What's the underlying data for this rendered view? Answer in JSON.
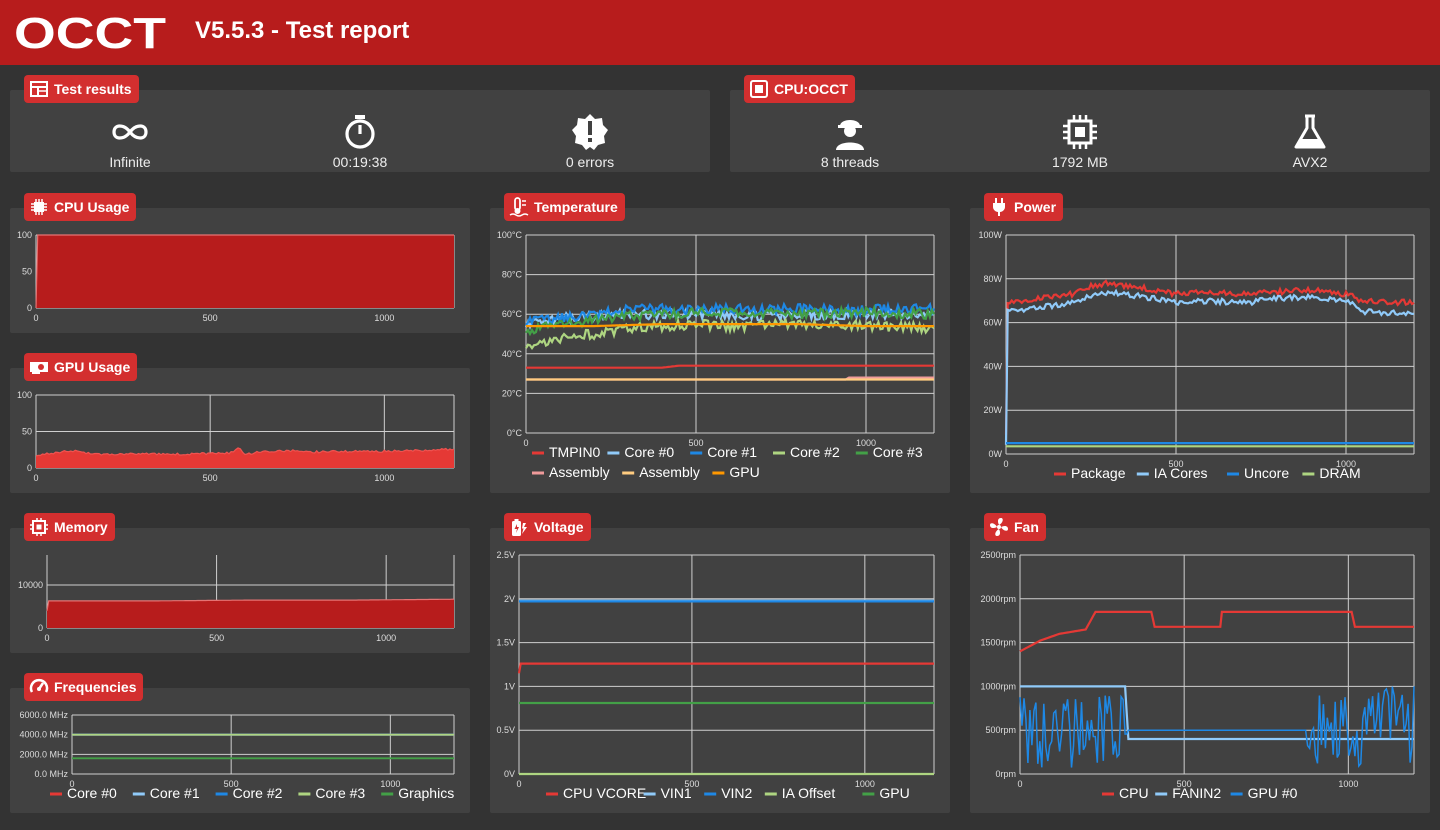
{
  "header": {
    "logo_text": "OCCT",
    "title": "V5.5.3 - Test report"
  },
  "test_results": {
    "title": "Test results",
    "duration_mode": "Infinite",
    "elapsed": "00:19:38",
    "errors": "0 errors"
  },
  "cpu_test": {
    "title": "CPU:OCCT",
    "threads": "8 threads",
    "memory": "1792 MB",
    "instruction_set": "AVX2"
  },
  "colors": {
    "accent": "#d32f2f",
    "header": "#b71c1c",
    "panel": "#414141",
    "background": "#333333"
  },
  "charts": {
    "cpu_usage": {
      "title": "CPU Usage",
      "icon": "cpu-chip-icon"
    },
    "gpu_usage": {
      "title": "GPU Usage",
      "icon": "graphics-card-icon"
    },
    "memory": {
      "title": "Memory",
      "icon": "memory-chip-icon"
    },
    "frequencies": {
      "title": "Frequencies",
      "icon": "speedometer-icon"
    },
    "temperature": {
      "title": "Temperature",
      "icon": "thermometer-icon"
    },
    "voltage": {
      "title": "Voltage",
      "icon": "battery-charging-icon"
    },
    "power": {
      "title": "Power",
      "icon": "power-plug-icon"
    },
    "fan": {
      "title": "Fan",
      "icon": "fan-icon"
    }
  },
  "chart_data": [
    {
      "id": "cpu_usage",
      "type": "area",
      "title": "CPU Usage",
      "xlim": [
        0,
        1200
      ],
      "xticks": [
        "0",
        "500",
        "1000"
      ],
      "ylim": [
        0,
        100
      ],
      "yticks": [
        "0",
        "50",
        "100"
      ],
      "series": [
        {
          "color": "#b71c1c",
          "fill": true,
          "points": [
            [
              0,
              0
            ],
            [
              5,
              100
            ],
            [
              1200,
              100
            ]
          ]
        }
      ]
    },
    {
      "id": "gpu_usage",
      "type": "area",
      "title": "GPU Usage",
      "xlim": [
        0,
        1200
      ],
      "xticks": [
        "0",
        "500",
        "1000"
      ],
      "ylim": [
        0,
        100
      ],
      "yticks": [
        "0",
        "50",
        "100"
      ],
      "series": [
        {
          "color": "#e53935",
          "fill": true,
          "points": [
            [
              0,
              18
            ],
            [
              50,
              20
            ],
            [
              100,
              24
            ],
            [
              150,
              20
            ],
            [
              200,
              19
            ],
            [
              300,
              20
            ],
            [
              400,
              19
            ],
            [
              500,
              20
            ],
            [
              560,
              21
            ],
            [
              580,
              28
            ],
            [
              600,
              18
            ],
            [
              640,
              22
            ],
            [
              700,
              23
            ],
            [
              750,
              24
            ],
            [
              800,
              22
            ],
            [
              900,
              23
            ],
            [
              1000,
              23
            ],
            [
              1100,
              24
            ],
            [
              1200,
              26
            ]
          ]
        }
      ]
    },
    {
      "id": "memory",
      "type": "area",
      "title": "Memory",
      "xlim": [
        0,
        1200
      ],
      "xticks": [
        "0",
        "500",
        "1000"
      ],
      "ylim": [
        0,
        17000
      ],
      "yticks": [
        "0",
        "10000"
      ],
      "series": [
        {
          "color": "#b71c1c",
          "fill": true,
          "points": [
            [
              0,
              4000
            ],
            [
              5,
              6300
            ],
            [
              300,
              6300
            ],
            [
              600,
              6500
            ],
            [
              900,
              6500
            ],
            [
              1200,
              6700
            ]
          ]
        }
      ]
    },
    {
      "id": "frequencies",
      "type": "line",
      "title": "Frequencies",
      "xlim": [
        0,
        1200
      ],
      "xticks": [
        "0",
        "500",
        "1000"
      ],
      "ylim": [
        0,
        6000
      ],
      "yticks": [
        "0.0 MHz",
        "2000.0 MHz",
        "4000.0 MHz",
        "6000.0 MHz"
      ],
      "legend": [
        "Core #0",
        "Core #1",
        "Core #2",
        "Core #3",
        "Graphics"
      ],
      "series": [
        {
          "name": "Core #0",
          "color": "#e53935",
          "points": [
            [
              0,
              4000
            ],
            [
              1200,
              4000
            ]
          ]
        },
        {
          "name": "Core #1",
          "color": "#90caf9",
          "points": [
            [
              0,
              4000
            ],
            [
              1200,
              4000
            ]
          ]
        },
        {
          "name": "Core #2",
          "color": "#1e88e5",
          "points": [
            [
              0,
              4000
            ],
            [
              1200,
              4000
            ]
          ]
        },
        {
          "name": "Core #3",
          "color": "#aed581",
          "points": [
            [
              0,
              4000
            ],
            [
              1200,
              4000
            ]
          ]
        },
        {
          "name": "Graphics",
          "color": "#43a047",
          "points": [
            [
              0,
              1600
            ],
            [
              1200,
              1600
            ]
          ]
        }
      ]
    },
    {
      "id": "temperature",
      "type": "line",
      "title": "Temperature",
      "xlim": [
        0,
        1200
      ],
      "xticks": [
        "0",
        "500",
        "1000"
      ],
      "ylim": [
        0,
        100
      ],
      "yticks": [
        "0°C",
        "20°C",
        "40°C",
        "60°C",
        "80°C",
        "100°C"
      ],
      "legend": [
        "TMPIN0",
        "Core #0",
        "Core #1",
        "Core #2",
        "Core #3",
        "Assembly",
        "Assembly",
        "GPU"
      ],
      "series": [
        {
          "name": "TMPIN0",
          "color": "#e53935",
          "points": [
            [
              0,
              33
            ],
            [
              400,
              33
            ],
            [
              450,
              34
            ],
            [
              1200,
              34
            ]
          ]
        },
        {
          "name": "Core #0",
          "color": "#90caf9",
          "points": [
            [
              0,
              55
            ],
            [
              100,
              58
            ],
            [
              300,
              60
            ],
            [
              500,
              60
            ],
            [
              700,
              59
            ],
            [
              900,
              60
            ],
            [
              1200,
              60
            ]
          ]
        },
        {
          "name": "Core #1",
          "color": "#1e88e5",
          "points": [
            [
              0,
              57
            ],
            [
              100,
              58
            ],
            [
              200,
              60
            ],
            [
              300,
              62
            ],
            [
              400,
              63
            ],
            [
              500,
              62
            ],
            [
              600,
              63
            ],
            [
              700,
              62
            ],
            [
              800,
              63
            ],
            [
              900,
              62
            ],
            [
              1000,
              62
            ],
            [
              1100,
              63
            ],
            [
              1200,
              63
            ]
          ]
        },
        {
          "name": "Core #2",
          "color": "#aed581",
          "points": [
            [
              0,
              44
            ],
            [
              100,
              48
            ],
            [
              200,
              50
            ],
            [
              300,
              53
            ],
            [
              400,
              54
            ],
            [
              500,
              55
            ],
            [
              600,
              54
            ],
            [
              800,
              55
            ],
            [
              1000,
              54
            ],
            [
              1200,
              53
            ]
          ]
        },
        {
          "name": "Core #3",
          "color": "#43a047",
          "points": [
            [
              0,
              52
            ],
            [
              100,
              55
            ],
            [
              200,
              57
            ],
            [
              300,
              59
            ],
            [
              400,
              60
            ],
            [
              500,
              61
            ],
            [
              600,
              61
            ],
            [
              800,
              60
            ],
            [
              1000,
              61
            ],
            [
              1200,
              60
            ]
          ]
        },
        {
          "name": "Assembly",
          "color": "#ef9a9a",
          "points": [
            [
              0,
              27
            ],
            [
              940,
              27
            ],
            [
              950,
              28
            ],
            [
              1200,
              28
            ]
          ]
        },
        {
          "name": "Assembly",
          "color": "#ffcc80",
          "points": [
            [
              0,
              27
            ],
            [
              1200,
              27
            ]
          ]
        },
        {
          "name": "GPU",
          "color": "#ff9800",
          "points": [
            [
              0,
              54
            ],
            [
              200,
              54
            ],
            [
              400,
              55
            ],
            [
              600,
              55
            ],
            [
              800,
              55
            ],
            [
              1000,
              54
            ],
            [
              1200,
              54
            ]
          ]
        }
      ]
    },
    {
      "id": "voltage",
      "type": "line",
      "title": "Voltage",
      "xlim": [
        0,
        1200
      ],
      "xticks": [
        "0",
        "500",
        "1000"
      ],
      "ylim": [
        0,
        2.5
      ],
      "yticks": [
        "0V",
        "0.5V",
        "1V",
        "1.5V",
        "2V",
        "2.5V"
      ],
      "legend": [
        "CPU VCORE",
        "VIN1",
        "VIN2",
        "IA Offset",
        "GPU"
      ],
      "series": [
        {
          "name": "CPU VCORE",
          "color": "#e53935",
          "points": [
            [
              0,
              1.15
            ],
            [
              5,
              1.26
            ],
            [
              1200,
              1.26
            ]
          ]
        },
        {
          "name": "VIN1",
          "color": "#90caf9",
          "points": [
            [
              0,
              1.98
            ],
            [
              1200,
              1.98
            ]
          ]
        },
        {
          "name": "VIN2",
          "color": "#1e88e5",
          "points": [
            [
              0,
              1.97
            ],
            [
              1200,
              1.97
            ]
          ]
        },
        {
          "name": "IA Offset",
          "color": "#aed581",
          "points": [
            [
              0,
              0
            ],
            [
              1200,
              0
            ]
          ]
        },
        {
          "name": "GPU",
          "color": "#43a047",
          "points": [
            [
              0,
              0.81
            ],
            [
              1200,
              0.81
            ]
          ]
        }
      ]
    },
    {
      "id": "power",
      "type": "line",
      "title": "Power",
      "xlim": [
        0,
        1200
      ],
      "xticks": [
        "0",
        "500",
        "1000"
      ],
      "ylim": [
        0,
        100
      ],
      "yticks": [
        "0W",
        "20W",
        "40W",
        "60W",
        "80W",
        "100W"
      ],
      "legend": [
        "Package",
        "IA Cores",
        "Uncore",
        "DRAM"
      ],
      "series": [
        {
          "name": "Package",
          "color": "#e53935",
          "points": [
            [
              0,
              10
            ],
            [
              5,
              69
            ],
            [
              100,
              71
            ],
            [
              200,
              73
            ],
            [
              250,
              77
            ],
            [
              300,
              78
            ],
            [
              400,
              76
            ],
            [
              500,
              73
            ],
            [
              600,
              74
            ],
            [
              700,
              73
            ],
            [
              800,
              74
            ],
            [
              900,
              75
            ],
            [
              1000,
              73
            ],
            [
              1050,
              70
            ],
            [
              1200,
              69
            ]
          ]
        },
        {
          "name": "IA Cores",
          "color": "#90caf9",
          "points": [
            [
              0,
              5
            ],
            [
              5,
              65
            ],
            [
              100,
              67
            ],
            [
              200,
              69
            ],
            [
              250,
              72
            ],
            [
              300,
              74
            ],
            [
              400,
              72
            ],
            [
              500,
              69
            ],
            [
              600,
              70
            ],
            [
              700,
              69
            ],
            [
              800,
              71
            ],
            [
              900,
              72
            ],
            [
              1000,
              70
            ],
            [
              1050,
              65
            ],
            [
              1200,
              64
            ]
          ]
        },
        {
          "name": "Uncore",
          "color": "#1e88e5",
          "points": [
            [
              0,
              5
            ],
            [
              1200,
              5
            ]
          ]
        },
        {
          "name": "DRAM",
          "color": "#aed581",
          "points": [
            [
              0,
              3.5
            ],
            [
              1200,
              3.5
            ]
          ]
        }
      ]
    },
    {
      "id": "fan",
      "type": "line",
      "title": "Fan",
      "xlim": [
        0,
        1200
      ],
      "xticks": [
        "0",
        "500",
        "1000"
      ],
      "ylim": [
        0,
        2500
      ],
      "yticks": [
        "0rpm",
        "500rpm",
        "1000rpm",
        "1500rpm",
        "2000rpm",
        "2500rpm"
      ],
      "legend": [
        "CPU",
        "FANIN2",
        "GPU #0"
      ],
      "series": [
        {
          "name": "CPU",
          "color": "#e53935",
          "points": [
            [
              0,
              1400
            ],
            [
              60,
              1520
            ],
            [
              120,
              1600
            ],
            [
              200,
              1650
            ],
            [
              230,
              1850
            ],
            [
              400,
              1850
            ],
            [
              410,
              1680
            ],
            [
              500,
              1680
            ],
            [
              610,
              1680
            ],
            [
              615,
              1850
            ],
            [
              1010,
              1850
            ],
            [
              1020,
              1680
            ],
            [
              1200,
              1680
            ]
          ]
        },
        {
          "name": "FANIN2",
          "color": "#90caf9",
          "points": [
            [
              0,
              1000
            ],
            [
              320,
              1000
            ],
            [
              330,
              400
            ],
            [
              1200,
              400
            ]
          ]
        },
        {
          "name": "GPU #0",
          "color": "#1e88e5",
          "spiky": true,
          "points": [
            [
              0,
              900
            ],
            [
              320,
              900
            ],
            [
              330,
              500
            ],
            [
              870,
              500
            ],
            [
              900,
              1000
            ],
            [
              1200,
              1000
            ]
          ]
        }
      ]
    }
  ]
}
